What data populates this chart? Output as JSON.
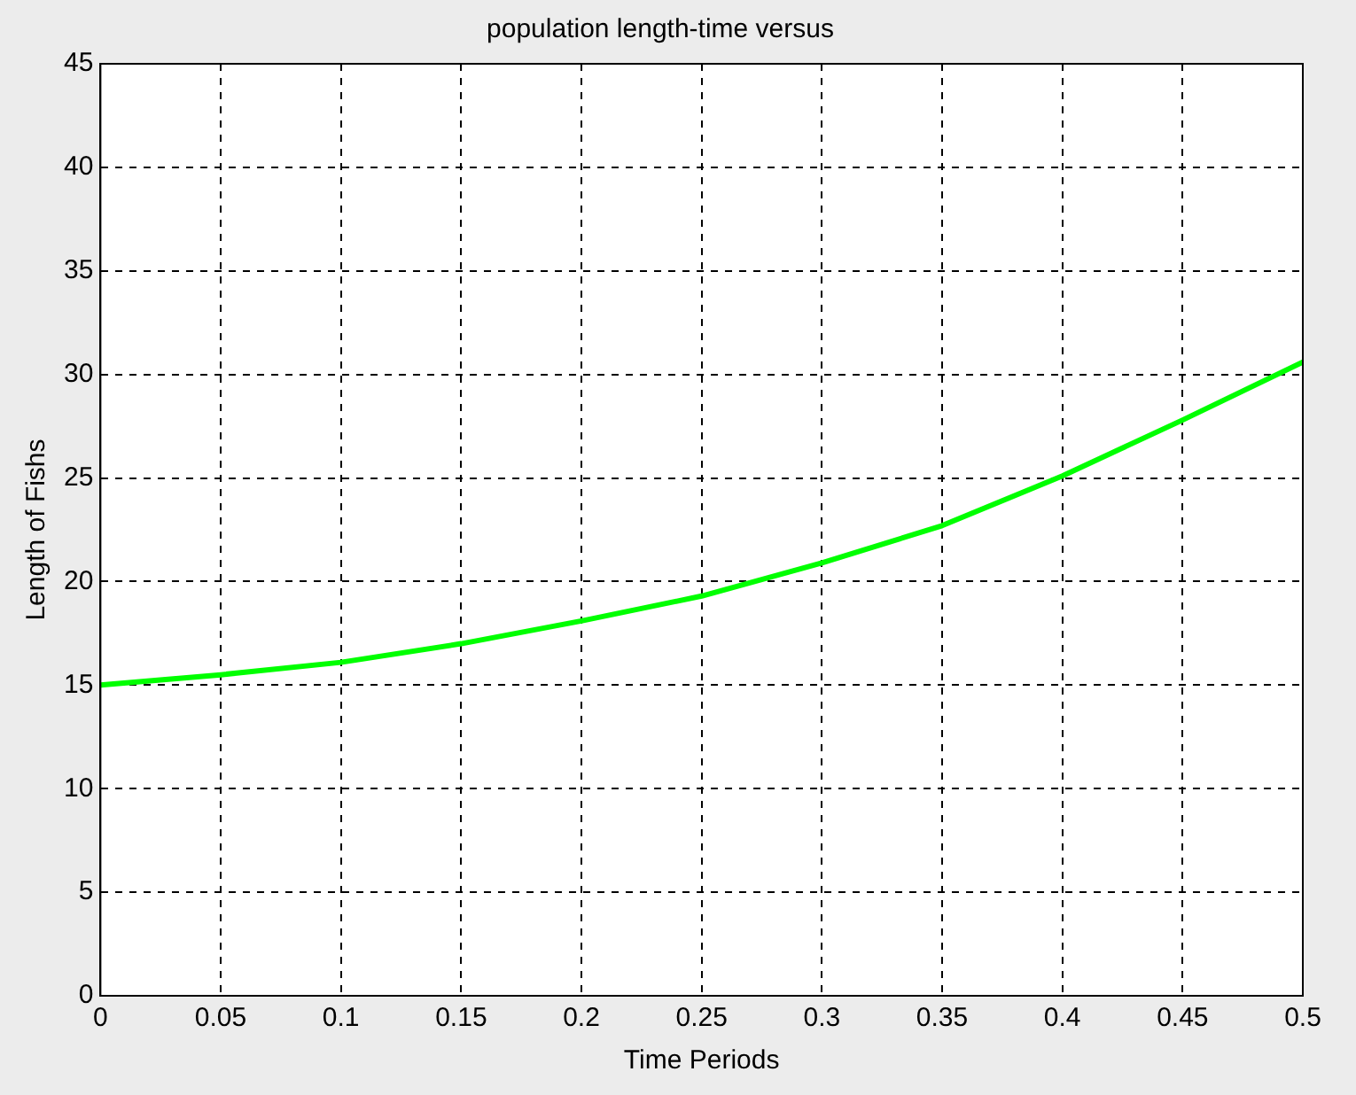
{
  "chart_data": {
    "type": "line",
    "title": "population length-time versus",
    "xlabel": "Time Periods",
    "ylabel": "Length of Fishs",
    "x": [
      0,
      0.05,
      0.1,
      0.15,
      0.2,
      0.25,
      0.3,
      0.35,
      0.4,
      0.45,
      0.5
    ],
    "series": [
      {
        "color": "#00ff00",
        "values": [
          15,
          15.5,
          16.1,
          17,
          18.1,
          19.3,
          20.9,
          22.7,
          25.1,
          27.8,
          30.6
        ]
      }
    ],
    "xlim": [
      0,
      0.5
    ],
    "xticks": [
      0,
      0.05,
      0.1,
      0.15,
      0.2,
      0.25,
      0.3,
      0.35,
      0.4,
      0.45,
      0.5
    ],
    "ylim": [
      0,
      45
    ],
    "yticks": [
      0,
      5,
      10,
      15,
      20,
      25,
      30,
      35,
      40,
      45
    ],
    "grid": true,
    "legend": false,
    "marker": "none",
    "line_style": "solid"
  }
}
